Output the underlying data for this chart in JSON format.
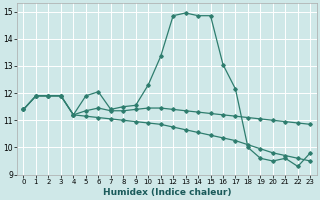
{
  "xlabel": "Humidex (Indice chaleur)",
  "xlim": [
    -0.5,
    23.5
  ],
  "ylim": [
    9,
    15.3
  ],
  "yticks": [
    9,
    10,
    11,
    12,
    13,
    14,
    15
  ],
  "xticks": [
    0,
    1,
    2,
    3,
    4,
    5,
    6,
    7,
    8,
    9,
    10,
    11,
    12,
    13,
    14,
    15,
    16,
    17,
    18,
    19,
    20,
    21,
    22,
    23
  ],
  "background_color": "#cfe8e8",
  "grid_color": "#ffffff",
  "line_color": "#2e7d6e",
  "series1": [
    11.4,
    11.9,
    11.9,
    11.9,
    11.2,
    11.9,
    12.05,
    11.4,
    11.5,
    11.55,
    12.3,
    13.35,
    14.85,
    14.95,
    14.85,
    14.85,
    13.05,
    12.15,
    10.0,
    9.6,
    9.5,
    9.6,
    9.3,
    9.8
  ],
  "series2": [
    11.4,
    11.9,
    11.9,
    11.9,
    11.2,
    11.15,
    11.1,
    11.05,
    11.0,
    10.95,
    10.9,
    10.85,
    10.75,
    10.65,
    10.55,
    10.45,
    10.35,
    10.25,
    10.1,
    9.95,
    9.8,
    9.7,
    9.6,
    9.5
  ],
  "series3": [
    11.4,
    11.9,
    11.9,
    11.9,
    11.2,
    11.35,
    11.45,
    11.35,
    11.35,
    11.4,
    11.45,
    11.45,
    11.4,
    11.35,
    11.3,
    11.25,
    11.2,
    11.15,
    11.1,
    11.05,
    11.0,
    10.95,
    10.9,
    10.85
  ]
}
